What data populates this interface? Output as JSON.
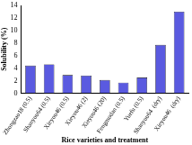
{
  "chart_data": {
    "type": "bar",
    "x_label": "Rice varieties and treatment",
    "y_label": "Solubility (%)",
    "categories": [
      "Zhongzao18 (0.5)",
      "Shanyou64 (0.5)",
      "Xieyou46 (0.5)",
      "Xieyou46 (2)",
      "Xieyou46 (20)",
      "Fengmodan (0.5)",
      "Yuefu (0.5)",
      "Shanyou64  (dry)",
      "Xieyou46  (dry)"
    ],
    "values": [
      4.4,
      4.6,
      2.9,
      2.8,
      2.1,
      1.7,
      2.5,
      7.7,
      13.0
    ],
    "color": "#5a5ae0",
    "ylim": [
      0,
      14
    ],
    "yticks": [
      0,
      2,
      4,
      6,
      8,
      10,
      12,
      14
    ],
    "grid": false
  }
}
